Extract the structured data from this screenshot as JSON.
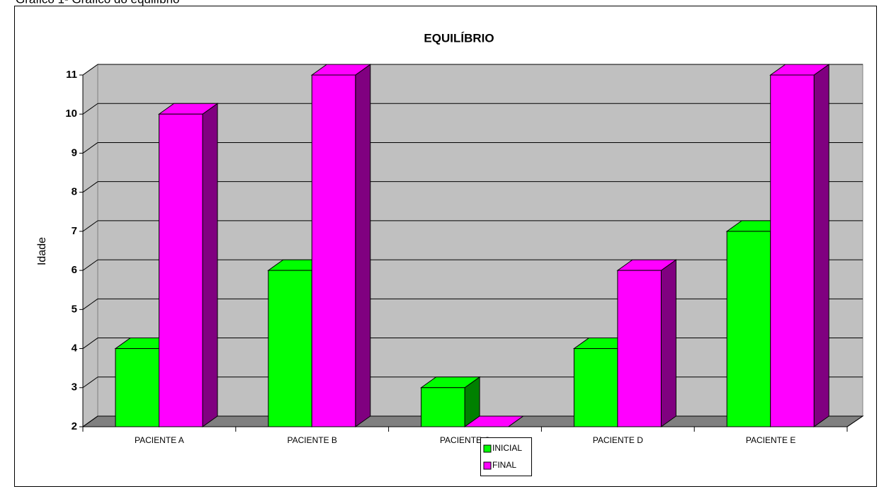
{
  "caption": "Gráfico 1- Gráfico do equilíbrio",
  "chart_data": {
    "type": "bar3d",
    "title": "EQUILÍBRIO",
    "y_label": "Idade",
    "categories": [
      "PACIENTE A",
      "PACIENTE B",
      "PACIENTE C",
      "PACIENTE D",
      "PACIENTE E"
    ],
    "series": [
      {
        "name": "INICIAL",
        "color": "#00ff00",
        "side_color": "#008000",
        "values": [
          4,
          6,
          3,
          4,
          7
        ]
      },
      {
        "name": "FINAL",
        "color": "#ff00ff",
        "side_color": "#800080",
        "values": [
          10,
          11,
          2,
          6,
          11
        ]
      }
    ],
    "ylim": [
      2,
      11
    ],
    "yticks": [
      2,
      3,
      4,
      5,
      6,
      7,
      8,
      9,
      10,
      11
    ],
    "grid": true,
    "legend": "bottom"
  }
}
